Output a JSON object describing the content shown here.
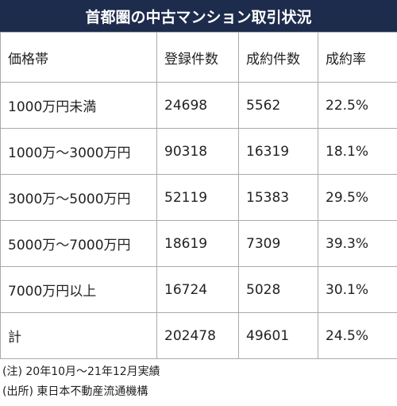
{
  "header": {
    "title": "首都圏の中古マンション取引状況"
  },
  "table": {
    "columns": [
      "価格帯",
      "登録件数",
      "成約件数",
      "成約率"
    ],
    "rows": [
      [
        "1000万円未満",
        24698,
        5562,
        "22.5%"
      ],
      [
        "1000万～3000万円",
        90318,
        16319,
        "18.1%"
      ],
      [
        "3000万～5000万円",
        52119,
        15383,
        "29.5%"
      ],
      [
        "5000万～7000万円",
        18619,
        7309,
        "39.3%"
      ],
      [
        "7000万円以上",
        16724,
        5028,
        "30.1%"
      ],
      [
        "計",
        202478,
        49601,
        "24.5%"
      ]
    ]
  },
  "notes": [
    "(注) 20年10月～21年12月実績",
    "(出所) 東日本不動産流通機構"
  ]
}
